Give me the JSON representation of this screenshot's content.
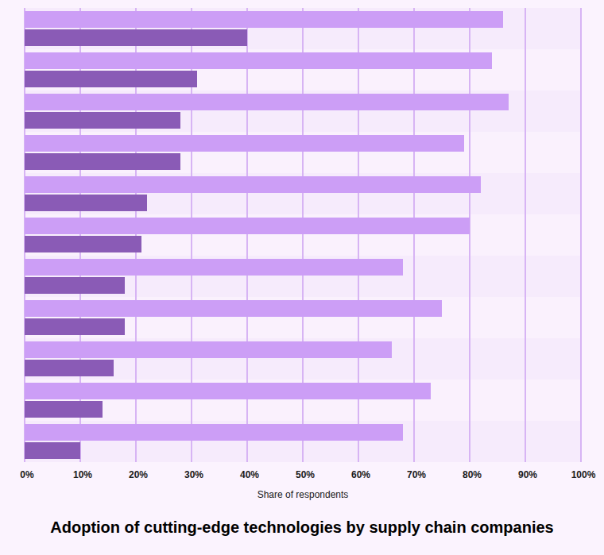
{
  "chart_data": {
    "type": "bar",
    "title": "Adoption of cutting-edge technologies by supply chain companies",
    "x_label": "Share of respondents",
    "orientation": "horizontal",
    "grid": true,
    "tick_labels": "x",
    "categories": [
      null,
      null,
      null,
      null,
      null,
      null,
      null,
      null,
      null,
      null,
      null
    ],
    "series": [
      {
        "color": "#cc9ef6",
        "values": [
          86,
          84,
          87,
          79,
          82,
          80,
          68,
          75,
          66,
          73,
          68
        ]
      },
      {
        "color": "#8a5bb6",
        "values": [
          40,
          31,
          28,
          28,
          22,
          21,
          18,
          18,
          16,
          14,
          10
        ]
      }
    ],
    "xlim": [
      0,
      100
    ],
    "xticks": [
      {
        "value": 0,
        "label": "0%"
      },
      {
        "value": 10,
        "label": "10%"
      },
      {
        "value": 20,
        "label": "20%"
      },
      {
        "value": 30,
        "label": "30%"
      },
      {
        "value": 40,
        "label": "40%"
      },
      {
        "value": 50,
        "label": "50%"
      },
      {
        "value": 60,
        "label": "60%"
      },
      {
        "value": 70,
        "label": "70%"
      },
      {
        "value": 80,
        "label": "80%"
      },
      {
        "value": 90,
        "label": "90%"
      },
      {
        "value": 100,
        "label": "100%"
      }
    ]
  }
}
